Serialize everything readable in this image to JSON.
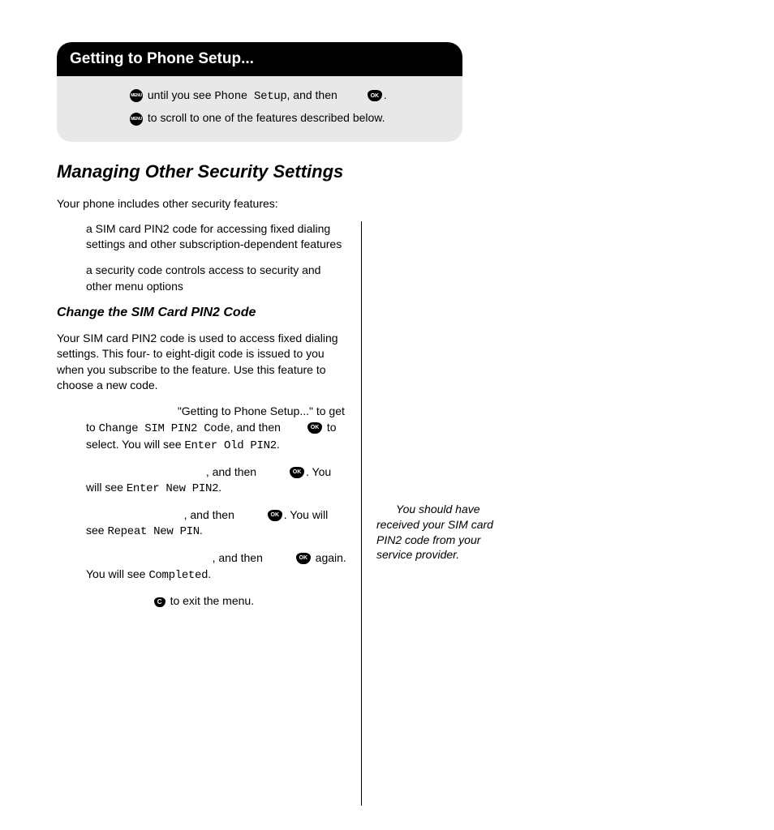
{
  "header": {
    "title": "Getting to Phone Setup...",
    "line1a": " until you see ",
    "line1_lcd": "Phone Setup",
    "line1b": ", and then ",
    "line1c": ".",
    "line2": " to scroll to one of the features described below."
  },
  "section_title": "Managing Other Security Settings",
  "intro": "Your phone includes other security features:",
  "bullet1": "a SIM card PIN2 code for accessing fixed dialing settings and other subscription-dependent features",
  "bullet2": "a security code controls access to security and other menu options",
  "subhead": "Change the SIM Card PIN2 Code",
  "subbody": "Your SIM card PIN2 code is used to access fixed dialing settings. This four- to eight-digit code is issued to you when you subscribe to the feature. Use this feature to choose a new code.",
  "step1a": "\"Getting to Phone Setup...\" to get to ",
  "step1_lcd1": "Change SIM PIN2 Code",
  "step1b": ", and then ",
  "step1c": " to select. You will see ",
  "step1_lcd2": "Enter Old PIN2",
  "step1d": ".",
  "step2a": ", and then ",
  "step2b": ". You will see ",
  "step2_lcd": "Enter New PIN2",
  "step2c": ".",
  "step3a": ", and then ",
  "step3b": ". You will see ",
  "step3_lcd": "Repeat New PIN",
  "step3c": ".",
  "step4a": ", and then ",
  "step4b": " again. You will see ",
  "step4_lcd": "Completed",
  "step4c": ".",
  "step5": " to exit the menu.",
  "tip": "You should have received your SIM card PIN2 code from your service provider.",
  "icons": {
    "menu_label": "MENU",
    "ok_label": "OK",
    "c_label": "C"
  }
}
